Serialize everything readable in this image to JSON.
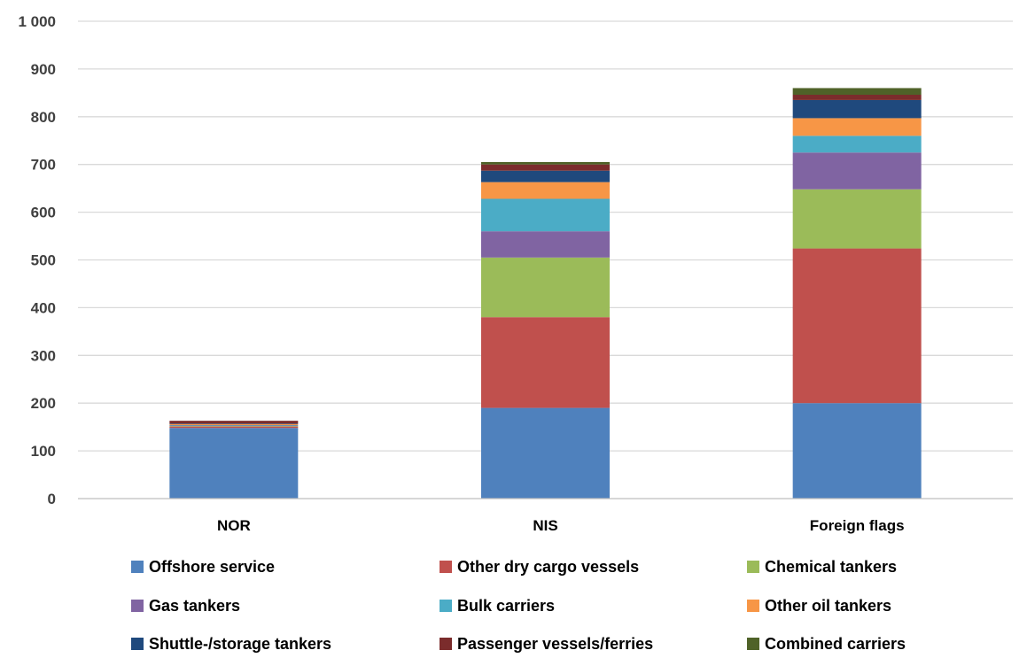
{
  "chart_data": {
    "type": "bar",
    "stacked": true,
    "title": "",
    "xlabel": "",
    "ylabel": "",
    "ylim": [
      0,
      1000
    ],
    "yticks": [
      0,
      100,
      200,
      300,
      400,
      500,
      600,
      700,
      800,
      900,
      1000
    ],
    "ytick_labels": [
      "0",
      "100",
      "200",
      "300",
      "400",
      "500",
      "600",
      "700",
      "800",
      "900",
      "1 000"
    ],
    "grid": true,
    "legend_position": "bottom",
    "categories": [
      "NOR",
      "NIS",
      "Foreign flags"
    ],
    "series": [
      {
        "name": "Offshore service",
        "color": "#4F81BD",
        "values": [
          148,
          190,
          200
        ]
      },
      {
        "name": "Other dry cargo vessels",
        "color": "#C0504D",
        "values": [
          3,
          190,
          324
        ]
      },
      {
        "name": "Chemical tankers",
        "color": "#9BBB59",
        "values": [
          1,
          125,
          124
        ]
      },
      {
        "name": "Gas tankers",
        "color": "#8064A2",
        "values": [
          1,
          55,
          77
        ]
      },
      {
        "name": "Bulk carriers",
        "color": "#4BACC6",
        "values": [
          1,
          68,
          35
        ]
      },
      {
        "name": "Other oil tankers",
        "color": "#F79646",
        "values": [
          2,
          35,
          37
        ]
      },
      {
        "name": "Shuttle-/storage tankers",
        "color": "#1F497D",
        "values": [
          1,
          24,
          38
        ]
      },
      {
        "name": "Passenger vessels/ferries",
        "color": "#7B2C2C",
        "values": [
          6,
          13,
          11
        ]
      },
      {
        "name": "Combined carriers",
        "color": "#4F6228",
        "values": [
          0,
          5,
          14
        ]
      }
    ]
  }
}
